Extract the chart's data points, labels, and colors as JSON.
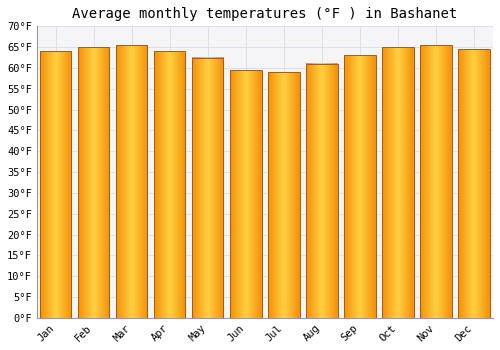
{
  "title": "Average monthly temperatures (°F ) in Bashanet",
  "months": [
    "Jan",
    "Feb",
    "Mar",
    "Apr",
    "May",
    "Jun",
    "Jul",
    "Aug",
    "Sep",
    "Oct",
    "Nov",
    "Dec"
  ],
  "values": [
    64.0,
    65.0,
    65.5,
    64.0,
    62.5,
    59.5,
    59.0,
    61.0,
    63.0,
    65.0,
    65.5,
    64.5
  ],
  "bar_left_color": "#F5900A",
  "bar_center_color": "#FFD040",
  "bar_edge_color": "#A06010",
  "background_color": "#FFFFFF",
  "plot_bg_color": "#F5F5F8",
  "grid_color": "#DEDEE8",
  "ylim": [
    0,
    70
  ],
  "yticks": [
    0,
    5,
    10,
    15,
    20,
    25,
    30,
    35,
    40,
    45,
    50,
    55,
    60,
    65,
    70
  ],
  "ylabel_suffix": "°F",
  "title_fontsize": 10,
  "tick_fontsize": 7.5,
  "font_family": "monospace",
  "bar_width": 0.82
}
